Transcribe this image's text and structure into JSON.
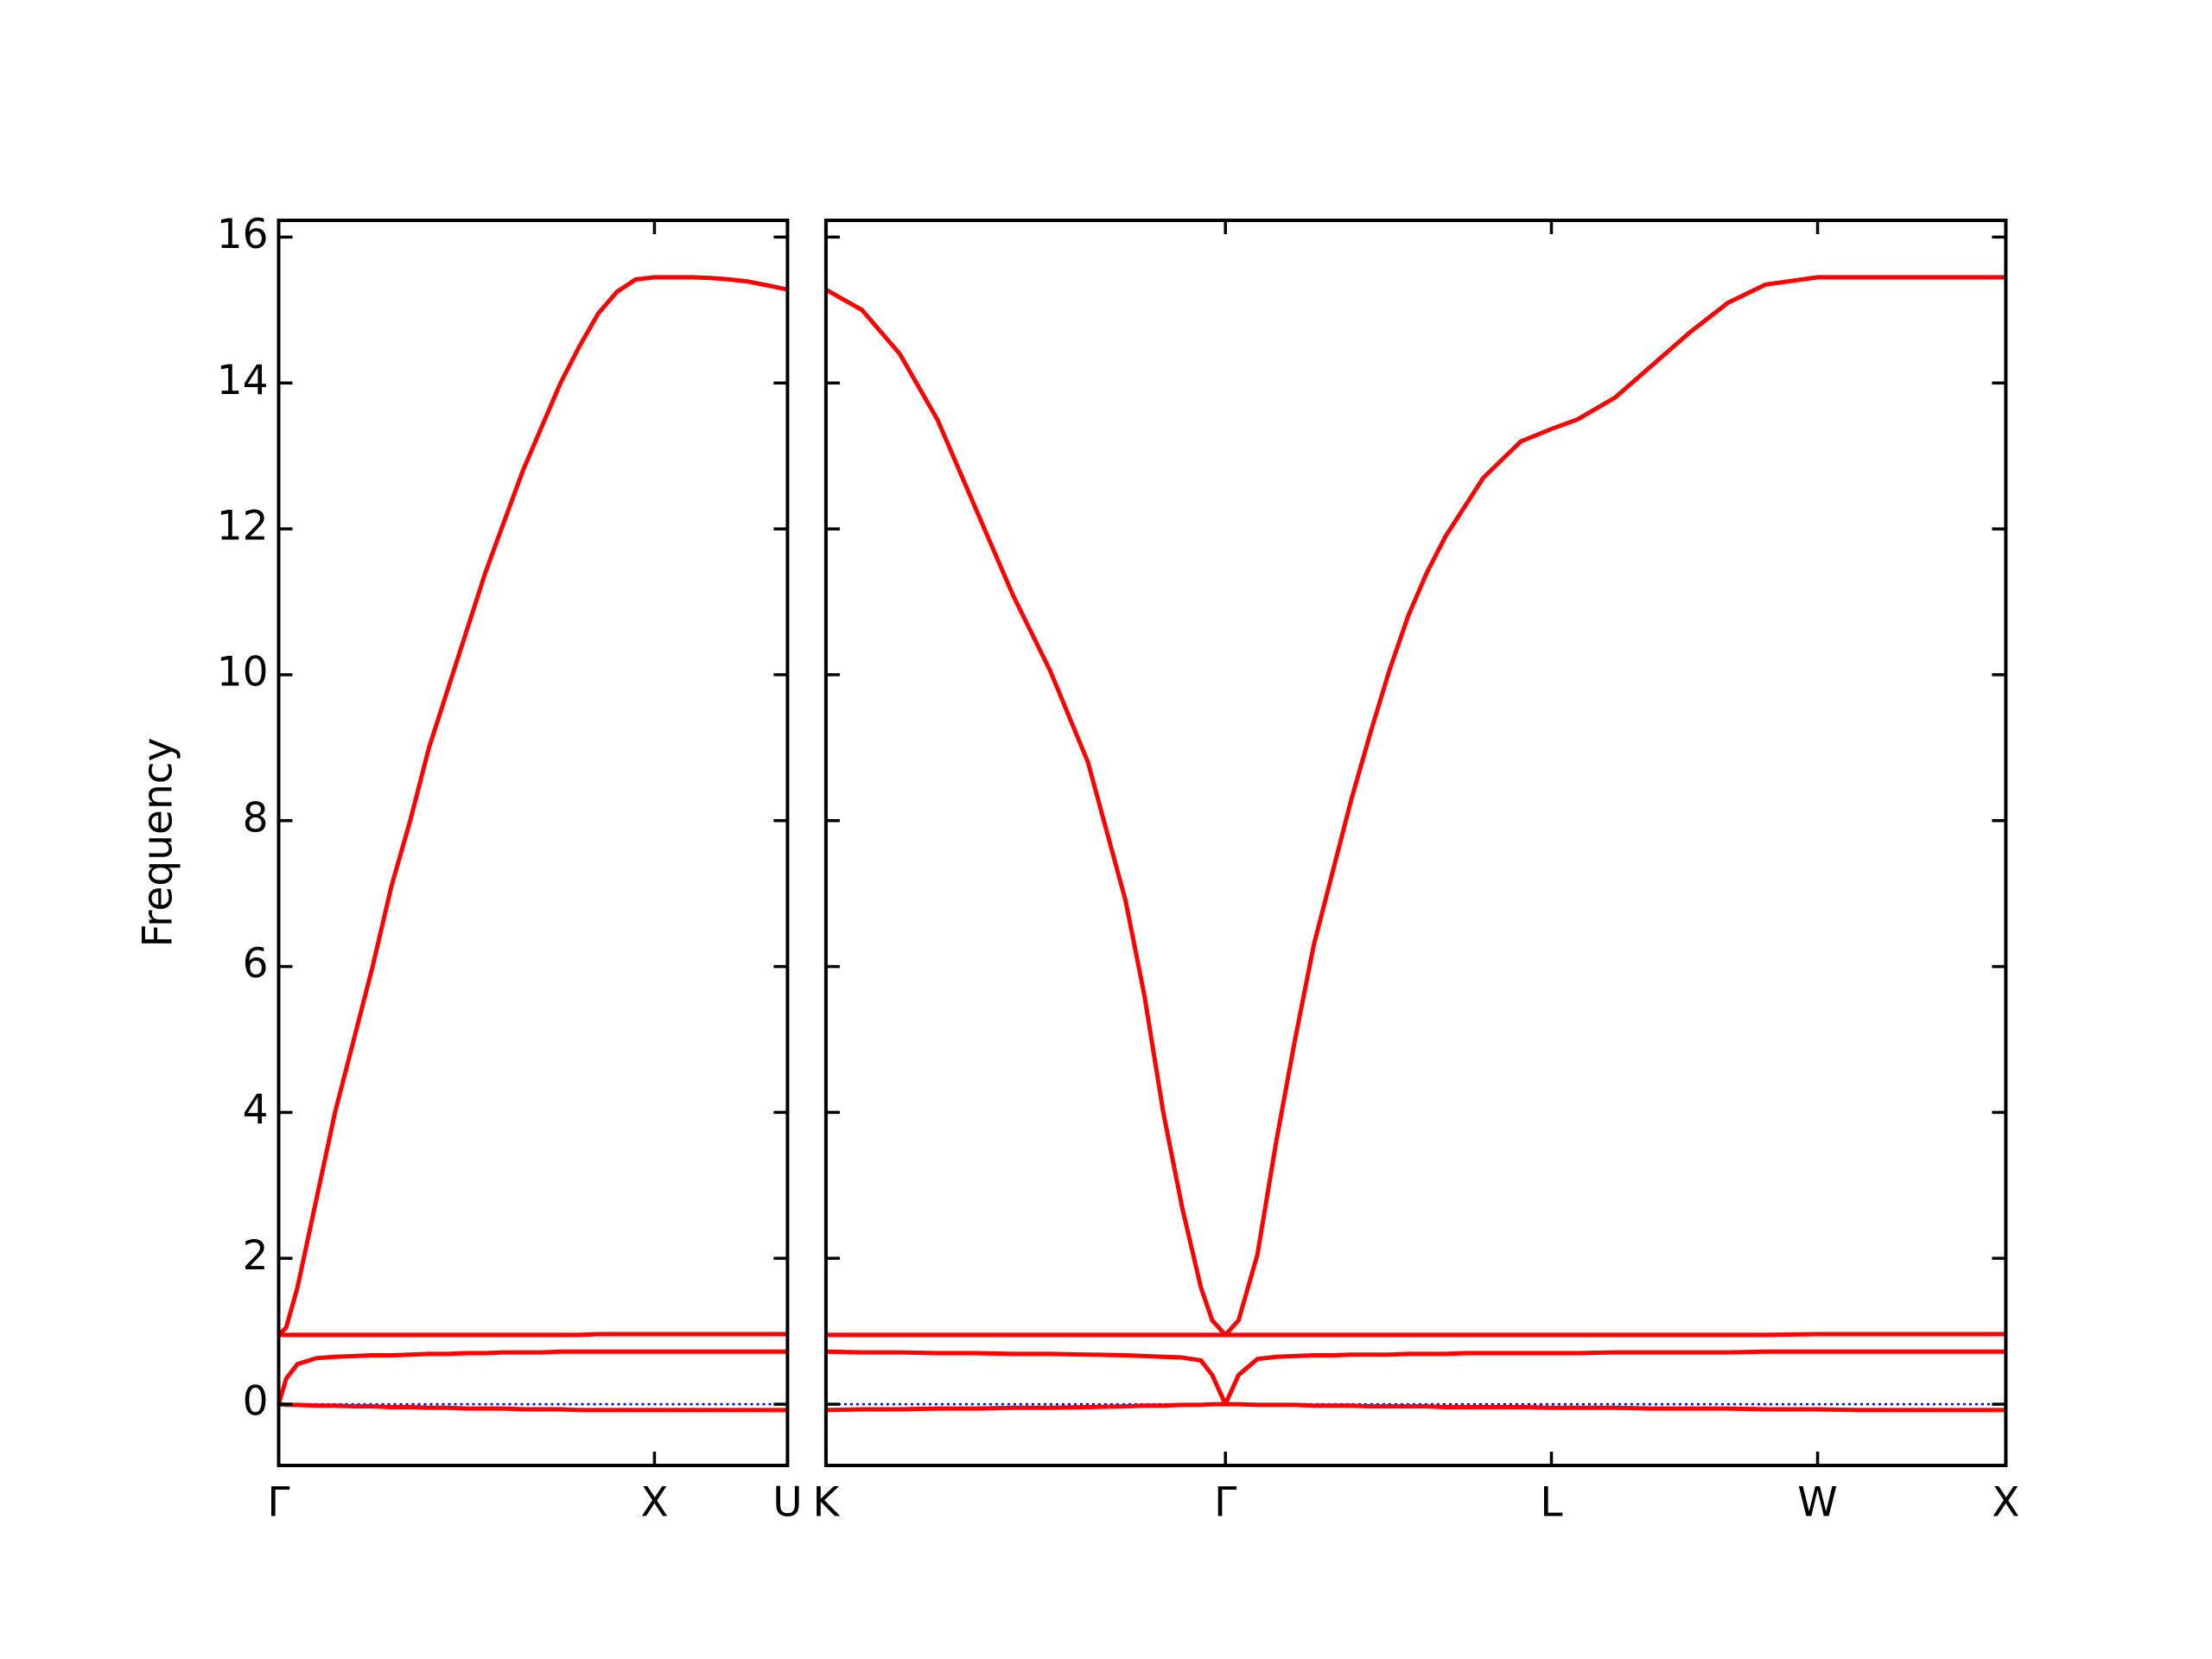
{
  "chart_data": [
    {
      "type": "line",
      "ylabel": "Frequency",
      "x": [
        0,
        0.02,
        0.05,
        0.1,
        0.15,
        0.2,
        0.25,
        0.3,
        0.35,
        0.4,
        0.45,
        0.5,
        0.55,
        0.6,
        0.65,
        0.7,
        0.75,
        0.8,
        0.85,
        0.9,
        0.95,
        1.0,
        1.05,
        1.1,
        1.15,
        1.2,
        1.25,
        1.3,
        1.354
      ],
      "series": [
        {
          "color": "#ff0000",
          "values": [
            0.95,
            1.05,
            1.6,
            2.8,
            4.0,
            5.0,
            6.0,
            7.1,
            8.0,
            9.0,
            9.8,
            10.6,
            11.4,
            12.1,
            12.8,
            13.4,
            14.0,
            14.5,
            14.95,
            15.25,
            15.42,
            15.45,
            15.45,
            15.45,
            15.44,
            15.42,
            15.39,
            15.34,
            15.28
          ]
        },
        {
          "color": "#ff0000",
          "values": [
            0.95,
            0.95,
            0.95,
            0.95,
            0.95,
            0.95,
            0.95,
            0.95,
            0.95,
            0.95,
            0.95,
            0.95,
            0.95,
            0.95,
            0.95,
            0.95,
            0.95,
            0.95,
            0.96,
            0.96,
            0.96,
            0.96,
            0.96,
            0.96,
            0.96,
            0.96,
            0.96,
            0.96,
            0.96
          ]
        },
        {
          "color": "#ff0000",
          "values": [
            0,
            0.35,
            0.55,
            0.63,
            0.65,
            0.66,
            0.67,
            0.67,
            0.68,
            0.69,
            0.69,
            0.7,
            0.7,
            0.71,
            0.71,
            0.71,
            0.72,
            0.72,
            0.72,
            0.72,
            0.72,
            0.72,
            0.72,
            0.72,
            0.72,
            0.72,
            0.72,
            0.72,
            0.72
          ]
        },
        {
          "color": "#ff0000",
          "values": [
            0,
            -0.01,
            -0.01,
            -0.02,
            -0.02,
            -0.03,
            -0.03,
            -0.04,
            -0.04,
            -0.05,
            -0.05,
            -0.06,
            -0.06,
            -0.06,
            -0.07,
            -0.07,
            -0.07,
            -0.08,
            -0.08,
            -0.08,
            -0.08,
            -0.08,
            -0.08,
            -0.08,
            -0.08,
            -0.08,
            -0.08,
            -0.08,
            -0.08
          ]
        }
      ],
      "xlim": [
        0,
        1.354
      ],
      "xticks": [
        {
          "value": 0,
          "label": "Γ"
        },
        {
          "value": 1.0,
          "label": "X"
        },
        {
          "value": 1.354,
          "label": "U"
        }
      ],
      "ylim": [
        -0.84,
        16.23
      ],
      "yticks": [
        0,
        2,
        4,
        6,
        8,
        10,
        12,
        14,
        16
      ],
      "hline": 0,
      "hline_color": "#0000cc"
    },
    {
      "type": "line",
      "x": [
        1.354,
        1.45,
        1.55,
        1.65,
        1.75,
        1.85,
        1.95,
        2.05,
        2.15,
        2.2,
        2.25,
        2.3,
        2.35,
        2.38,
        2.415,
        2.45,
        2.5,
        2.55,
        2.6,
        2.65,
        2.7,
        2.75,
        2.8,
        2.85,
        2.9,
        2.95,
        3.0,
        3.05,
        3.1,
        3.15,
        3.2,
        3.281,
        3.35,
        3.45,
        3.55,
        3.65,
        3.75,
        3.85,
        3.988,
        4.1,
        4.25,
        4.4,
        4.488
      ],
      "series": [
        {
          "color": "#ff0000",
          "values": [
            15.28,
            15.0,
            14.4,
            13.5,
            12.3,
            11.1,
            10.05,
            8.8,
            6.9,
            5.6,
            4.0,
            2.7,
            1.6,
            1.15,
            0.95,
            1.15,
            2.05,
            3.6,
            5.0,
            6.3,
            7.3,
            8.3,
            9.2,
            10.05,
            10.8,
            11.4,
            11.9,
            12.3,
            12.7,
            12.95,
            13.2,
            13.37,
            13.5,
            13.8,
            14.25,
            14.7,
            15.1,
            15.35,
            15.45,
            15.45,
            15.45,
            15.45,
            15.45
          ]
        },
        {
          "color": "#ff0000",
          "values": [
            0.95,
            0.95,
            0.95,
            0.95,
            0.95,
            0.95,
            0.95,
            0.95,
            0.95,
            0.95,
            0.95,
            0.95,
            0.95,
            0.95,
            0.95,
            0.95,
            0.95,
            0.95,
            0.95,
            0.95,
            0.95,
            0.95,
            0.95,
            0.95,
            0.95,
            0.95,
            0.95,
            0.95,
            0.95,
            0.95,
            0.95,
            0.95,
            0.95,
            0.95,
            0.95,
            0.95,
            0.95,
            0.95,
            0.96,
            0.96,
            0.96,
            0.96,
            0.96
          ]
        },
        {
          "color": "#ff0000",
          "values": [
            0.72,
            0.71,
            0.71,
            0.7,
            0.7,
            0.69,
            0.69,
            0.68,
            0.67,
            0.66,
            0.65,
            0.64,
            0.6,
            0.4,
            0,
            0.4,
            0.62,
            0.65,
            0.66,
            0.67,
            0.67,
            0.68,
            0.68,
            0.68,
            0.69,
            0.69,
            0.69,
            0.7,
            0.7,
            0.7,
            0.7,
            0.7,
            0.7,
            0.71,
            0.71,
            0.71,
            0.71,
            0.72,
            0.72,
            0.72,
            0.72,
            0.72,
            0.72
          ]
        },
        {
          "color": "#ff0000",
          "values": [
            -0.08,
            -0.07,
            -0.07,
            -0.06,
            -0.06,
            -0.05,
            -0.05,
            -0.04,
            -0.03,
            -0.02,
            -0.02,
            -0.01,
            -0.01,
            0,
            0,
            0,
            -0.01,
            -0.01,
            -0.01,
            -0.02,
            -0.02,
            -0.02,
            -0.03,
            -0.03,
            -0.03,
            -0.03,
            -0.04,
            -0.04,
            -0.04,
            -0.04,
            -0.04,
            -0.05,
            -0.05,
            -0.05,
            -0.06,
            -0.06,
            -0.06,
            -0.07,
            -0.07,
            -0.08,
            -0.08,
            -0.08,
            -0.08
          ]
        }
      ],
      "xlim": [
        1.354,
        4.488
      ],
      "xticks": [
        {
          "value": 1.354,
          "label": "K"
        },
        {
          "value": 2.415,
          "label": "Γ"
        },
        {
          "value": 3.281,
          "label": "L"
        },
        {
          "value": 3.988,
          "label": "W"
        },
        {
          "value": 4.488,
          "label": "X"
        }
      ],
      "ylim": [
        -0.84,
        16.23
      ],
      "hline": 0,
      "hline_color": "#0000cc"
    }
  ]
}
